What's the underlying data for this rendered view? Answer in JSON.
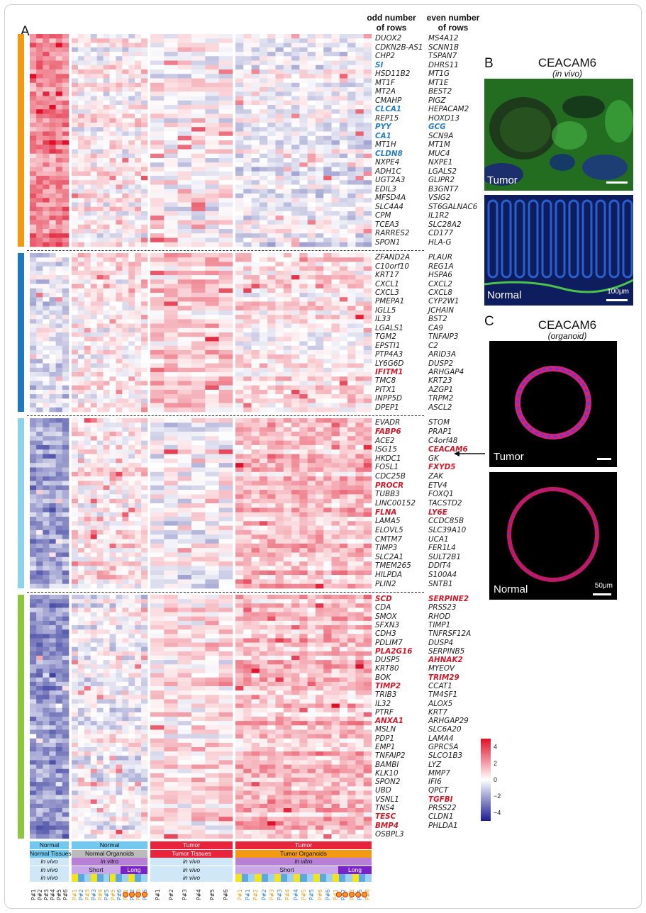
{
  "panels": {
    "a": "A",
    "b": "B",
    "c": "C"
  },
  "column_headers": {
    "odd": "odd number\nof rows",
    "even": "even number\nof rows"
  },
  "gene_groups": [
    {
      "color": "#f39a12",
      "odd": [
        "DUOX2",
        "CDKN2B-AS1",
        "CHP2",
        "SI",
        "HSD11B2",
        "MT1F",
        "MT2A",
        "CMAHP",
        "CLCA1",
        "REP15",
        "PYY",
        "CA1",
        "MT1H",
        "CLDN8",
        "NXPE4",
        "ADH1C",
        "UGT2A3",
        "EDIL3",
        "MFSD4A",
        "SLC4A4",
        "CPM",
        "TCEA3",
        "RARRES2",
        "SPON1"
      ],
      "even": [
        "MS4A12",
        "SCNN1B",
        "TSPAN7",
        "DHRS11",
        "MT1G",
        "MT1E",
        "BEST2",
        "PIGZ",
        "HEPACAM2",
        "HOXD13",
        "GCG",
        "SCN9A",
        "MT1M",
        "MUC4",
        "NXPE1",
        "LGALS2",
        "GLIPR2",
        "B3GNT7",
        "VSIG2",
        "ST6GALNAC6",
        "IL1R2",
        "SLC28A2",
        "CD177",
        "HLA-G"
      ],
      "highlight_blue": [
        "SI",
        "CLCA1",
        "PYY",
        "CA1",
        "CLDN8",
        "GCG"
      ],
      "highlight_red": []
    },
    {
      "color": "#1f78c1",
      "odd": [
        "ZFAND2A",
        "C10orf10",
        "KRT17",
        "CXCL1",
        "CXCL3",
        "PMEPA1",
        "IGLL5",
        "IL33",
        "LGALS1",
        "TGM2",
        "EPSTI1",
        "PTP4A3",
        "LY6G6D",
        "IFITM1",
        "TMC8",
        "PITX1",
        "INPP5D",
        "DPEP1"
      ],
      "even": [
        "PLAUR",
        "REG1A",
        "HSPA6",
        "CXCL2",
        "CXCL8",
        "CYP2W1",
        "JCHAIN",
        "BST2",
        "CA9",
        "TNFAIP3",
        "C2",
        "ARID3A",
        "DUSP2",
        "ARHGAP4",
        "KRT23",
        "AZGP1",
        "TRPM2",
        "ASCL2"
      ],
      "highlight_blue": [],
      "highlight_red": [
        "IFITM1"
      ]
    },
    {
      "color": "#8fd3ea",
      "odd": [
        "EVADR",
        "FABP6",
        "ACE2",
        "ISG15",
        "HKDC1",
        "FOSL1",
        "CDC25B",
        "PROCR",
        "TUBB3",
        "LINC00152",
        "FLNA",
        "LAMA5",
        "ELOVL5",
        "CMTM7",
        "TIMP3",
        "SLC2A1",
        "TMEM265",
        "HILPDA",
        "PLIN2"
      ],
      "even": [
        "STOM",
        "PRAP1",
        "C4orf48",
        "CEACAM6",
        "GK",
        "FXYD5",
        "ZAK",
        "ETV4",
        "FOXQ1",
        "TACSTD2",
        "LY6E",
        "CCDC85B",
        "SLC39A10",
        "UCA1",
        "FER1L4",
        "SULT2B1",
        "DDIT4",
        "S100A4",
        "SNTB1"
      ],
      "highlight_blue": [],
      "highlight_red": [
        "FABP6",
        "PROCR",
        "FLNA",
        "CEACAM6",
        "FXYD5",
        "LY6E"
      ]
    },
    {
      "color": "#8cc63f",
      "odd": [
        "SCD",
        "CDA",
        "SMOX",
        "SFXN3",
        "CDH3",
        "PDLIM7",
        "PLA2G16",
        "DUSP5",
        "KRT80",
        "BOK",
        "TIMP2",
        "TRIB3",
        "IL32",
        "PTRF",
        "ANXA1",
        "MSLN",
        "PDP1",
        "EMP1",
        "TNFAIP2",
        "BAMBI",
        "KLK10",
        "SPON2",
        "UBD",
        "VSNL1",
        "TNS4",
        "TESC",
        "BMP4",
        "OSBPL3"
      ],
      "even": [
        "SERPINE2",
        "PRSS23",
        "RHOD",
        "TIMP1",
        "TNFRSF12A",
        "DUSP4",
        "SERPINB5",
        "AHNAK2",
        "MYEOV",
        "TRIM29",
        "CCAT1",
        "TM4SF1",
        "ALOX5",
        "KRT7",
        "ARHGAP29",
        "SLC6A20",
        "LAMA4",
        "GPRC5A",
        "SLCO1B3",
        "LYZ",
        "MMP7",
        "IFI6",
        "QPCT",
        "TGFBI",
        "PRSS22",
        "CLDN1",
        "PHLDA1"
      ],
      "highlight_blue": [],
      "highlight_red": [
        "SCD",
        "PLA2G16",
        "TIMP2",
        "ANXA1",
        "TESC",
        "BMP4",
        "SERPINE2",
        "AHNAK2",
        "TRIM29",
        "TGFBI"
      ]
    }
  ],
  "annotation_rows": [
    {
      "segments": [
        {
          "label": "Normal",
          "color": "#72c8ee",
          "text_color": "#111111"
        },
        {
          "label": "Normal",
          "color": "#72c8ee",
          "text_color": "#111111"
        },
        {
          "label": "Tumor",
          "color": "#e8243c",
          "text_color": "#ffffff"
        },
        {
          "label": "Tumor",
          "color": "#e8243c",
          "text_color": "#ffffff"
        }
      ]
    },
    {
      "segments": [
        {
          "label": "Normal Tissues",
          "color": "#72c8ee",
          "text_color": "#111111"
        },
        {
          "label": "Normal Organoids",
          "color": "#bbbbbb",
          "text_color": "#111111"
        },
        {
          "label": "Tumor Tissues",
          "color": "#e8243c",
          "text_color": "#ffffff"
        },
        {
          "label": "Tumor Organoids",
          "color": "#f39a12",
          "text_color": "#111111"
        }
      ]
    },
    {
      "segments": [
        {
          "label": "in vivo",
          "color": "#cfe7f7",
          "text_color": "#111111"
        },
        {
          "label": "in vitro",
          "color": "#b77fd6",
          "text_color": "#111111"
        },
        {
          "label": "in vivo",
          "color": "#cfe7f7",
          "text_color": "#111111"
        },
        {
          "label": "in vitro",
          "color": "#b77fd6",
          "text_color": "#111111"
        }
      ]
    },
    {
      "segments": [
        {
          "label": "in vivo",
          "color": "#cfe7f7",
          "text_color": "#111111"
        },
        {
          "label": "Short",
          "color": "#c9a7e8",
          "text_color": "#111111"
        },
        {
          "label": "Long",
          "color": "#7a22c9",
          "text_color": "#ffffff"
        },
        {
          "label": "in vivo",
          "color": "#cfe7f7",
          "text_color": "#111111"
        },
        {
          "label": "Short",
          "color": "#c9a7e8",
          "text_color": "#111111"
        },
        {
          "label": "Long",
          "color": "#7a22c9",
          "text_color": "#ffffff"
        }
      ]
    },
    {
      "segments": [
        {
          "label": "in vivo",
          "color": "#cfe7f7",
          "text_color": "#111111"
        },
        {
          "label": "",
          "color": "#5aa9e0",
          "text_color": "#111111"
        },
        {
          "label": "in vivo",
          "color": "#cfe7f7",
          "text_color": "#111111"
        },
        {
          "label": "",
          "color": "#5aa9e0",
          "text_color": "#111111"
        }
      ]
    }
  ],
  "sample_labels": {
    "normal_tissue": [
      "P#1",
      "P#2",
      "P#3",
      "P#4",
      "P#5",
      "P#6"
    ],
    "normal_organoid": [
      "P#1",
      "P#2",
      "P#3",
      "P#3",
      "P#4",
      "P#5",
      "P#5",
      "P#6",
      "P#1",
      "P#2",
      "P#3",
      "P#6"
    ],
    "tumor_tissue": [
      "P#1",
      "P#2",
      "P#3",
      "P#4",
      "P#5",
      "P#6"
    ],
    "tumor_organoid": [
      "P#1",
      "P#1",
      "P#2",
      "P#2",
      "P#3",
      "P#3",
      "P#4",
      "P#4",
      "P#5",
      "P#5",
      "P#6",
      "P#6",
      "P#1",
      "P#2",
      "P#3",
      "P#5",
      "P#6"
    ]
  },
  "figure_b": {
    "title": "CEACAM6",
    "subtitle": "(in vivo)",
    "tumor_label": "Tumor",
    "normal_label": "Normal",
    "scale": "100μm"
  },
  "figure_c": {
    "title": "CEACAM6",
    "subtitle": "(organoid)",
    "tumor_label": "Tumor",
    "normal_label": "Normal",
    "scale": "50μm"
  },
  "legend": {
    "ticks": [
      "4",
      "2",
      "0",
      "−2",
      "−4"
    ],
    "tick_values": [
      4,
      2,
      0,
      -2,
      -4
    ],
    "min": -5,
    "max": 5,
    "low_color": "#1b1f8f",
    "mid_color": "#ffffff",
    "high_color": "#e0102a"
  },
  "colors": {
    "gap": "#ffffff",
    "dashes": "#333333"
  }
}
